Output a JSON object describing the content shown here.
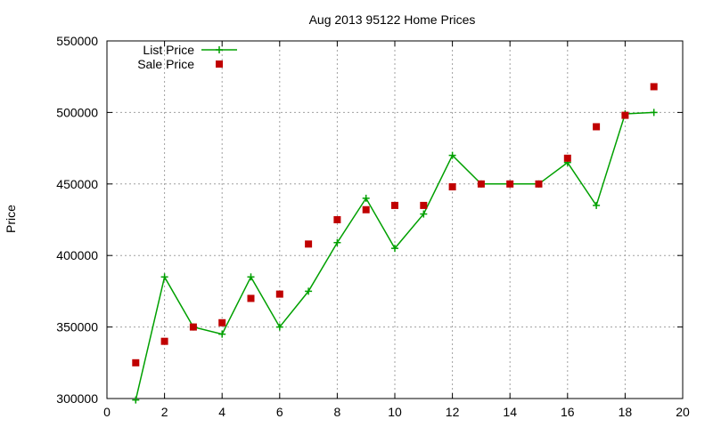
{
  "chart_data": {
    "type": "line",
    "title": "Aug 2013 95122 Home Prices",
    "xlabel": "",
    "ylabel": "Price",
    "xlim": [
      0,
      20
    ],
    "ylim": [
      300000,
      550000
    ],
    "xticks": [
      0,
      2,
      4,
      6,
      8,
      10,
      12,
      14,
      16,
      18,
      20
    ],
    "yticks": [
      300000,
      350000,
      400000,
      450000,
      500000,
      550000
    ],
    "grid": true,
    "legend_position": "top-left",
    "series": [
      {
        "name": "List Price",
        "style": "line-plus",
        "color": "#00a000",
        "x": [
          1,
          2,
          3,
          4,
          5,
          6,
          7,
          8,
          9,
          10,
          11,
          12,
          13,
          14,
          15,
          16,
          17,
          18,
          19
        ],
        "y": [
          299000,
          385000,
          350000,
          345000,
          385000,
          350000,
          375000,
          409000,
          440000,
          405000,
          429000,
          470000,
          450000,
          450000,
          450000,
          465000,
          435000,
          499000,
          500000
        ]
      },
      {
        "name": "Sale Price",
        "style": "square-points",
        "color": "#c00000",
        "x": [
          1,
          2,
          3,
          4,
          5,
          6,
          7,
          8,
          9,
          10,
          11,
          12,
          13,
          14,
          15,
          16,
          17,
          18,
          19
        ],
        "y": [
          325000,
          340000,
          350000,
          353000,
          370000,
          373000,
          408000,
          425000,
          432000,
          435000,
          435000,
          448000,
          450000,
          450000,
          450000,
          468000,
          490000,
          498000,
          518000
        ]
      }
    ]
  }
}
